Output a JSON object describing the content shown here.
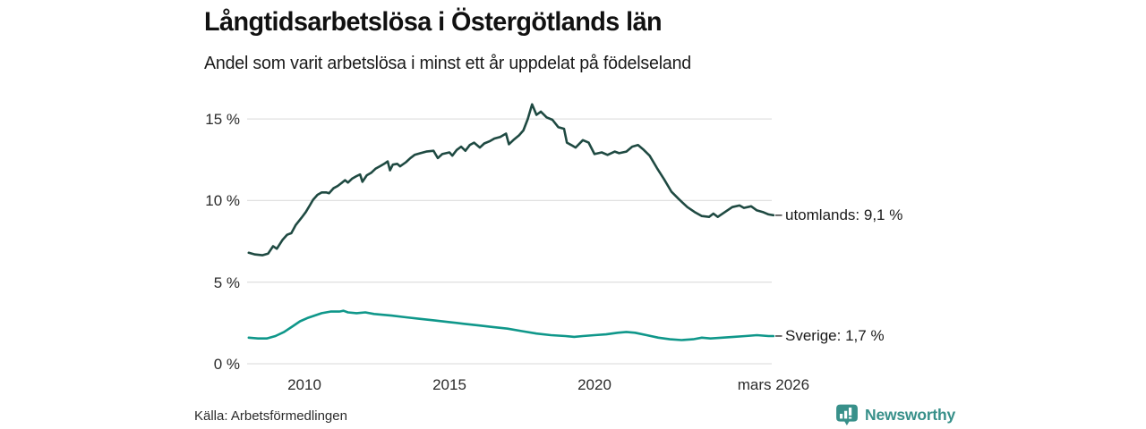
{
  "header": {
    "title": "Långtidsarbetslösa i Östergötlands län",
    "subtitle": "Andel som varit arbetslösa i minst ett år uppdelat på födelseland"
  },
  "footer": {
    "source": "Källa: Arbetsförmedlingen",
    "brand_name": "Newsworthy",
    "brand_icon": "newsworthy-chart-bubble-icon"
  },
  "colors": {
    "series_utomlands": "#1f4a42",
    "series_sverige": "#0f978a",
    "gridline": "#e0e0e0",
    "label_dash": "#4a4a4a",
    "brand_teal": "#38908a",
    "text": "#1a1a1a"
  },
  "chart_data": {
    "type": "line",
    "title": "Långtidsarbetslösa i Östergötlands län",
    "subtitle": "Andel som varit arbetslösa i minst ett år uppdelat på födelseland",
    "xlabel": "",
    "ylabel": "",
    "x_range": [
      2008.08,
      2026.17
    ],
    "ylim": [
      0,
      16.4
    ],
    "grid": "horizontal",
    "legend_position": "right-end-labels",
    "y_axis": {
      "ticks": [
        {
          "value": 0,
          "label": "0 %"
        },
        {
          "value": 5,
          "label": "5 %"
        },
        {
          "value": 10,
          "label": "10 %"
        },
        {
          "value": 15,
          "label": "15 %"
        }
      ]
    },
    "x_axis": {
      "ticks": [
        {
          "x": 2010,
          "label": "2010"
        },
        {
          "x": 2015,
          "label": "2015"
        },
        {
          "x": 2020,
          "label": "2020"
        },
        {
          "x": 2026.17,
          "label": "mars 2026"
        }
      ]
    },
    "series": [
      {
        "name": "utomlands",
        "label": "utomlands: 9,1 %",
        "end_value": 9.1,
        "color": "#1f4a42",
        "points": [
          [
            2008.08,
            6.8
          ],
          [
            2008.3,
            6.7
          ],
          [
            2008.55,
            6.65
          ],
          [
            2008.75,
            6.75
          ],
          [
            2008.92,
            7.2
          ],
          [
            2009.05,
            7.05
          ],
          [
            2009.25,
            7.6
          ],
          [
            2009.4,
            7.9
          ],
          [
            2009.55,
            8.0
          ],
          [
            2009.7,
            8.5
          ],
          [
            2009.9,
            8.95
          ],
          [
            2010.05,
            9.3
          ],
          [
            2010.2,
            9.75
          ],
          [
            2010.3,
            10.05
          ],
          [
            2010.45,
            10.35
          ],
          [
            2010.6,
            10.5
          ],
          [
            2010.75,
            10.5
          ],
          [
            2010.85,
            10.45
          ],
          [
            2011.0,
            10.75
          ],
          [
            2011.15,
            10.9
          ],
          [
            2011.3,
            11.1
          ],
          [
            2011.4,
            11.25
          ],
          [
            2011.5,
            11.1
          ],
          [
            2011.65,
            11.35
          ],
          [
            2011.8,
            11.5
          ],
          [
            2011.92,
            11.6
          ],
          [
            2012.0,
            11.15
          ],
          [
            2012.15,
            11.55
          ],
          [
            2012.3,
            11.7
          ],
          [
            2012.45,
            11.95
          ],
          [
            2012.6,
            12.1
          ],
          [
            2012.75,
            12.25
          ],
          [
            2012.87,
            12.4
          ],
          [
            2012.95,
            11.85
          ],
          [
            2013.05,
            12.2
          ],
          [
            2013.2,
            12.25
          ],
          [
            2013.3,
            12.1
          ],
          [
            2013.5,
            12.35
          ],
          [
            2013.65,
            12.6
          ],
          [
            2013.8,
            12.8
          ],
          [
            2014.0,
            12.9
          ],
          [
            2014.2,
            13.0
          ],
          [
            2014.45,
            13.05
          ],
          [
            2014.6,
            12.6
          ],
          [
            2014.75,
            12.85
          ],
          [
            2015.0,
            12.95
          ],
          [
            2015.1,
            12.75
          ],
          [
            2015.25,
            13.1
          ],
          [
            2015.4,
            13.3
          ],
          [
            2015.55,
            13.05
          ],
          [
            2015.7,
            13.4
          ],
          [
            2015.85,
            13.55
          ],
          [
            2016.05,
            13.25
          ],
          [
            2016.2,
            13.5
          ],
          [
            2016.4,
            13.65
          ],
          [
            2016.55,
            13.8
          ],
          [
            2016.75,
            13.9
          ],
          [
            2016.95,
            14.1
          ],
          [
            2017.05,
            13.45
          ],
          [
            2017.2,
            13.7
          ],
          [
            2017.4,
            14.0
          ],
          [
            2017.55,
            14.3
          ],
          [
            2017.7,
            15.0
          ],
          [
            2017.85,
            15.9
          ],
          [
            2018.0,
            15.25
          ],
          [
            2018.15,
            15.45
          ],
          [
            2018.35,
            15.1
          ],
          [
            2018.55,
            14.95
          ],
          [
            2018.75,
            14.5
          ],
          [
            2018.95,
            14.4
          ],
          [
            2019.05,
            13.55
          ],
          [
            2019.2,
            13.4
          ],
          [
            2019.35,
            13.25
          ],
          [
            2019.6,
            13.7
          ],
          [
            2019.8,
            13.55
          ],
          [
            2020.0,
            12.85
          ],
          [
            2020.25,
            12.95
          ],
          [
            2020.45,
            12.8
          ],
          [
            2020.7,
            13.0
          ],
          [
            2020.85,
            12.9
          ],
          [
            2021.1,
            13.0
          ],
          [
            2021.3,
            13.3
          ],
          [
            2021.5,
            13.4
          ],
          [
            2021.7,
            13.1
          ],
          [
            2021.9,
            12.75
          ],
          [
            2022.15,
            12.0
          ],
          [
            2022.4,
            11.3
          ],
          [
            2022.65,
            10.55
          ],
          [
            2022.9,
            10.1
          ],
          [
            2023.2,
            9.6
          ],
          [
            2023.45,
            9.3
          ],
          [
            2023.7,
            9.05
          ],
          [
            2023.95,
            9.0
          ],
          [
            2024.1,
            9.2
          ],
          [
            2024.25,
            9.0
          ],
          [
            2024.5,
            9.3
          ],
          [
            2024.75,
            9.6
          ],
          [
            2025.0,
            9.7
          ],
          [
            2025.15,
            9.55
          ],
          [
            2025.4,
            9.65
          ],
          [
            2025.6,
            9.4
          ],
          [
            2025.8,
            9.3
          ],
          [
            2026.0,
            9.15
          ],
          [
            2026.17,
            9.1
          ]
        ]
      },
      {
        "name": "Sverige",
        "label": "Sverige: 1,7 %",
        "end_value": 1.7,
        "color": "#0f978a",
        "points": [
          [
            2008.08,
            1.6
          ],
          [
            2008.4,
            1.55
          ],
          [
            2008.7,
            1.55
          ],
          [
            2009.0,
            1.7
          ],
          [
            2009.3,
            1.95
          ],
          [
            2009.6,
            2.3
          ],
          [
            2009.85,
            2.6
          ],
          [
            2010.1,
            2.8
          ],
          [
            2010.35,
            2.95
          ],
          [
            2010.6,
            3.1
          ],
          [
            2010.9,
            3.2
          ],
          [
            2011.2,
            3.2
          ],
          [
            2011.35,
            3.25
          ],
          [
            2011.5,
            3.15
          ],
          [
            2011.8,
            3.1
          ],
          [
            2012.1,
            3.15
          ],
          [
            2012.4,
            3.05
          ],
          [
            2012.7,
            3.0
          ],
          [
            2013.0,
            2.95
          ],
          [
            2013.5,
            2.85
          ],
          [
            2014.0,
            2.75
          ],
          [
            2014.5,
            2.65
          ],
          [
            2015.0,
            2.55
          ],
          [
            2015.5,
            2.45
          ],
          [
            2016.0,
            2.35
          ],
          [
            2016.5,
            2.25
          ],
          [
            2017.0,
            2.15
          ],
          [
            2017.5,
            2.0
          ],
          [
            2018.0,
            1.85
          ],
          [
            2018.5,
            1.75
          ],
          [
            2019.0,
            1.7
          ],
          [
            2019.3,
            1.65
          ],
          [
            2019.6,
            1.7
          ],
          [
            2020.0,
            1.75
          ],
          [
            2020.4,
            1.8
          ],
          [
            2020.8,
            1.9
          ],
          [
            2021.1,
            1.95
          ],
          [
            2021.4,
            1.9
          ],
          [
            2021.8,
            1.75
          ],
          [
            2022.2,
            1.6
          ],
          [
            2022.6,
            1.5
          ],
          [
            2023.0,
            1.45
          ],
          [
            2023.4,
            1.5
          ],
          [
            2023.7,
            1.6
          ],
          [
            2024.0,
            1.55
          ],
          [
            2024.4,
            1.6
          ],
          [
            2024.8,
            1.65
          ],
          [
            2025.2,
            1.7
          ],
          [
            2025.6,
            1.75
          ],
          [
            2026.0,
            1.7
          ],
          [
            2026.17,
            1.7
          ]
        ]
      }
    ]
  }
}
